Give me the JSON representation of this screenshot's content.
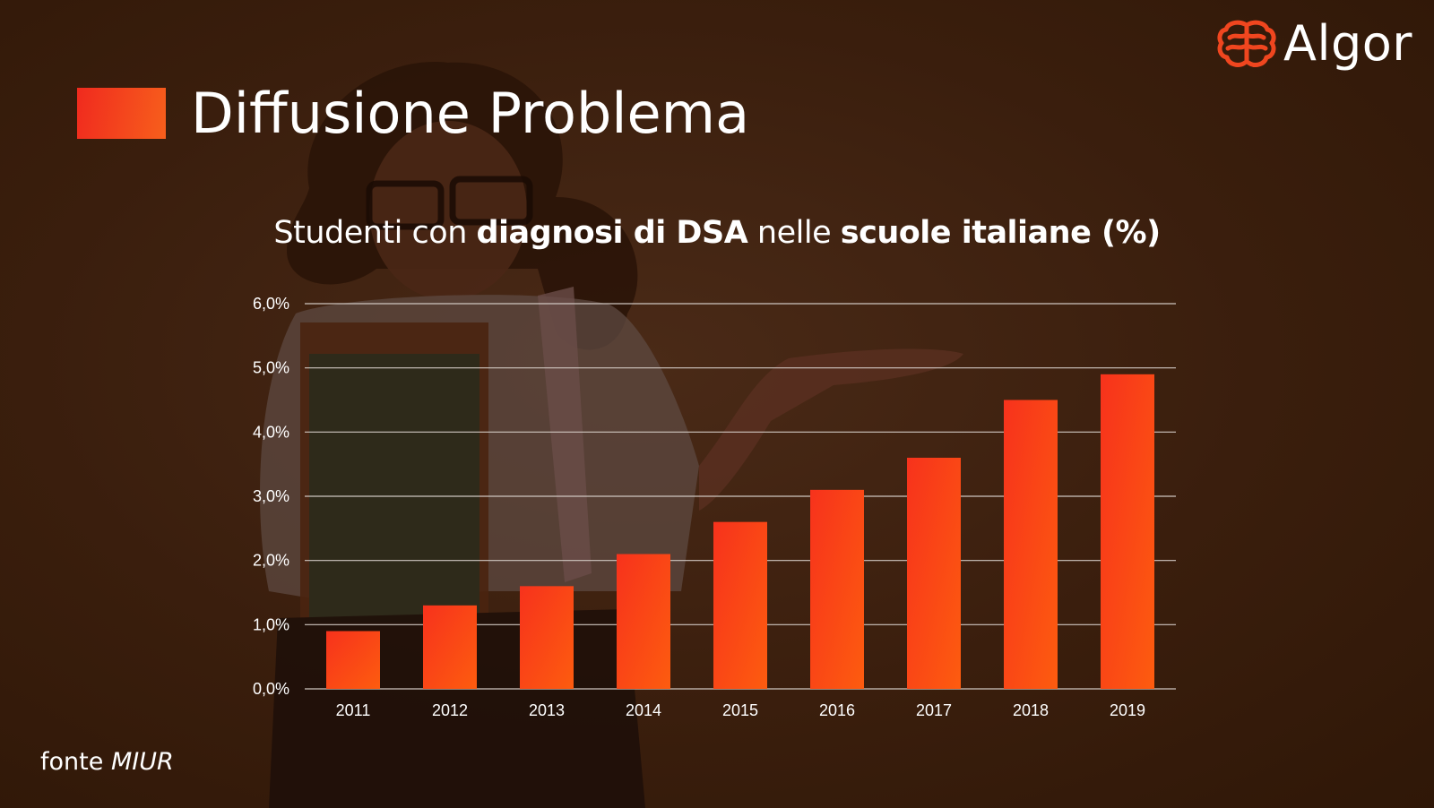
{
  "slide": {
    "title": "Diffusione Problema",
    "brand": "Algor",
    "source_label": "fonte",
    "source_name": "MIUR"
  },
  "chart_title": {
    "part1": "Studenti con ",
    "part2": "diagnosi di DSA",
    "part3": " nelle ",
    "part4": "scuole italiane (%)"
  },
  "colors": {
    "background": "#3a1e0d",
    "bar_top": "#f7321c",
    "bar_bottom": "#fd5c0f",
    "accent_square": "#f04a1e",
    "logo": "#f0461f",
    "gridline": "#cfc6c0",
    "text": "#ffffff"
  },
  "icons": {
    "logo": "brain-icon",
    "background": "student-photo"
  },
  "chart_data": {
    "type": "bar",
    "title": "Studenti con diagnosi di DSA nelle scuole italiane (%)",
    "categories": [
      "2011",
      "2012",
      "2013",
      "2014",
      "2015",
      "2016",
      "2017",
      "2018",
      "2019"
    ],
    "values": [
      0.9,
      1.3,
      1.6,
      2.1,
      2.6,
      3.1,
      3.6,
      4.5,
      4.9
    ],
    "ylim": [
      0,
      6
    ],
    "yticks": [
      "0,0%",
      "1,0%",
      "2,0%",
      "3,0%",
      "4,0%",
      "5,0%",
      "6,0%"
    ],
    "xlabel": "",
    "ylabel": "",
    "grid": true,
    "legend": "none"
  }
}
